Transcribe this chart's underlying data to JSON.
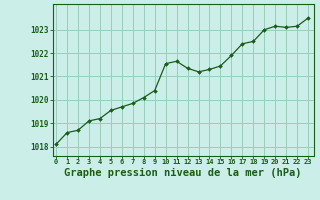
{
  "x": [
    0,
    1,
    2,
    3,
    4,
    5,
    6,
    7,
    8,
    9,
    10,
    11,
    12,
    13,
    14,
    15,
    16,
    17,
    18,
    19,
    20,
    21,
    22,
    23
  ],
  "y": [
    1018.1,
    1018.6,
    1018.7,
    1019.1,
    1019.2,
    1019.55,
    1019.7,
    1019.85,
    1020.1,
    1020.4,
    1021.55,
    1021.65,
    1021.35,
    1021.2,
    1021.3,
    1021.45,
    1021.9,
    1022.4,
    1022.5,
    1023.0,
    1023.15,
    1023.1,
    1023.15,
    1023.5
  ],
  "line_color": "#1a5c1a",
  "marker": "D",
  "marker_size": 2.0,
  "bg_color": "#cceee8",
  "grid_color": "#99ccbb",
  "axis_color": "#1a5c1a",
  "title": "Graphe pression niveau de la mer (hPa)",
  "title_fontsize": 7.5,
  "title_color": "#1a5c1a",
  "xlabel_tick_labels": [
    "0",
    "1",
    "2",
    "3",
    "4",
    "5",
    "6",
    "7",
    "8",
    "9",
    "10",
    "11",
    "12",
    "13",
    "14",
    "15",
    "16",
    "17",
    "18",
    "19",
    "20",
    "21",
    "22",
    "23"
  ],
  "yticks": [
    1018,
    1019,
    1020,
    1021,
    1022,
    1023
  ],
  "ylim": [
    1017.6,
    1024.1
  ],
  "xlim": [
    -0.3,
    23.5
  ]
}
